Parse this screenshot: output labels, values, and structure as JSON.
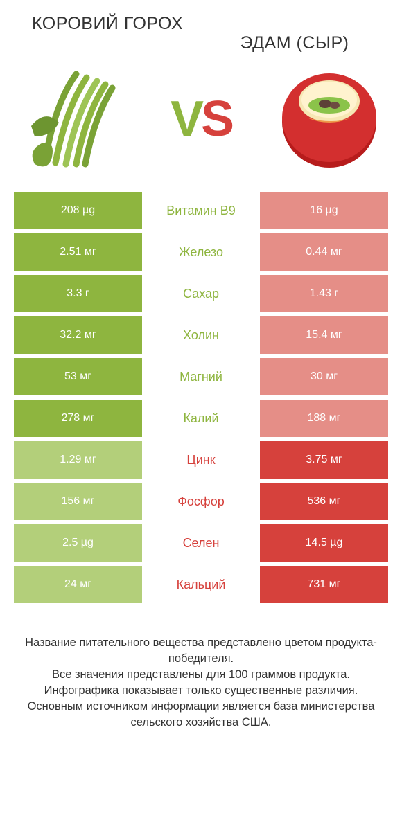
{
  "colors": {
    "green_strong": "#8eb53f",
    "green_pale": "#b3cf7a",
    "red_strong": "#d6413c",
    "red_pale": "#e58e87",
    "text": "#333333"
  },
  "left": {
    "title": "КОРОВИЙ ГОРОХ"
  },
  "right": {
    "title": "ЭДАМ (СЫР)"
  },
  "vs": {
    "v": "V",
    "s": "S"
  },
  "rows": [
    {
      "nutrient": "Витамин B9",
      "left": "208 µg",
      "right": "16 µg",
      "winner": "left"
    },
    {
      "nutrient": "Железо",
      "left": "2.51 мг",
      "right": "0.44 мг",
      "winner": "left"
    },
    {
      "nutrient": "Сахар",
      "left": "3.3 г",
      "right": "1.43 г",
      "winner": "left"
    },
    {
      "nutrient": "Холин",
      "left": "32.2 мг",
      "right": "15.4 мг",
      "winner": "left"
    },
    {
      "nutrient": "Магний",
      "left": "53 мг",
      "right": "30 мг",
      "winner": "left"
    },
    {
      "nutrient": "Калий",
      "left": "278 мг",
      "right": "188 мг",
      "winner": "left"
    },
    {
      "nutrient": "Цинк",
      "left": "1.29 мг",
      "right": "3.75 мг",
      "winner": "right"
    },
    {
      "nutrient": "Фосфор",
      "left": "156 мг",
      "right": "536 мг",
      "winner": "right"
    },
    {
      "nutrient": "Селен",
      "left": "2.5 µg",
      "right": "14.5 µg",
      "winner": "right"
    },
    {
      "nutrient": "Кальций",
      "left": "24 мг",
      "right": "731 мг",
      "winner": "right"
    }
  ],
  "footer": {
    "line1": "Название питательного вещества представлено цветом продукта-победителя.",
    "line2": "Все значения представлены для 100 граммов продукта.",
    "line3": "Инфографика показывает только существенные различия.",
    "line4": "Основным источником информации является база министерства сельского хозяйства США."
  }
}
